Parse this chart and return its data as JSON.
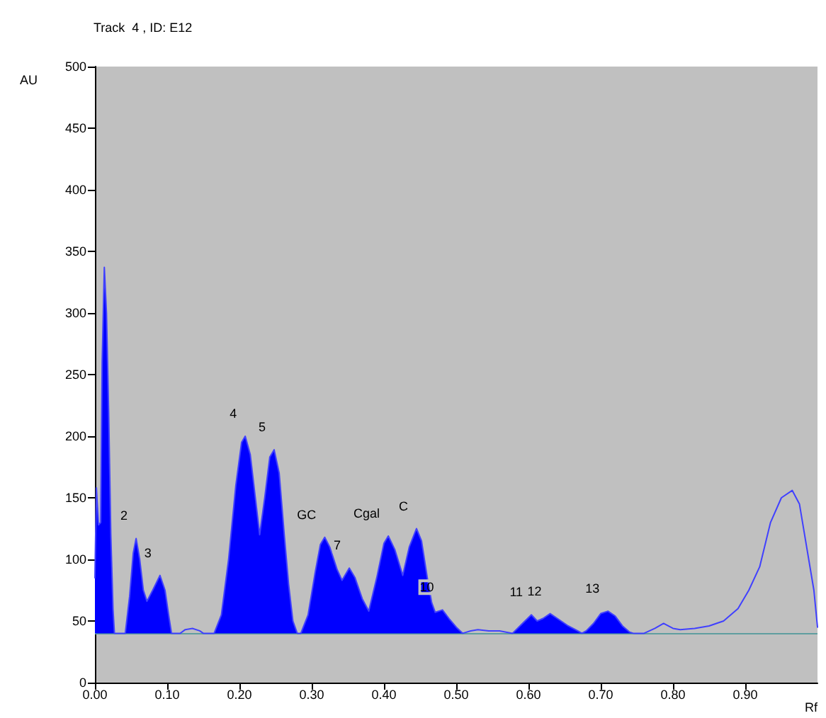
{
  "chart_data": {
    "type": "area",
    "title": "Track  4 , ID: E12",
    "xlabel": "Rf",
    "ylabel": "AU",
    "x": [
      0,
      0.002,
      0.005,
      0.008,
      0.01,
      0.013,
      0.016,
      0.019,
      0.022,
      0.025,
      0.027,
      0.042,
      0.048,
      0.053,
      0.057,
      0.062,
      0.067,
      0.072,
      0.08,
      0.09,
      0.097,
      0.102,
      0.106,
      0.118,
      0.125,
      0.135,
      0.145,
      0.15,
      0.165,
      0.175,
      0.185,
      0.195,
      0.203,
      0.208,
      0.215,
      0.222,
      0.228,
      0.235,
      0.242,
      0.248,
      0.255,
      0.262,
      0.268,
      0.274,
      0.28,
      0.285,
      0.295,
      0.305,
      0.312,
      0.318,
      0.325,
      0.335,
      0.342,
      0.352,
      0.36,
      0.37,
      0.379,
      0.39,
      0.4,
      0.406,
      0.415,
      0.426,
      0.435,
      0.445,
      0.452,
      0.46,
      0.466,
      0.471,
      0.481,
      0.49,
      0.5,
      0.509,
      0.52,
      0.53,
      0.545,
      0.56,
      0.578,
      0.59,
      0.604,
      0.612,
      0.62,
      0.63,
      0.64,
      0.655,
      0.668,
      0.674,
      0.68,
      0.69,
      0.7,
      0.71,
      0.72,
      0.73,
      0.74,
      0.745,
      0.76,
      0.775,
      0.787,
      0.8,
      0.81,
      0.83,
      0.85,
      0.87,
      0.89,
      0.905,
      0.92,
      0.935,
      0.95,
      0.965,
      0.975,
      0.985,
      0.995,
      1.0
    ],
    "series": [
      {
        "color": "#0000ff",
        "values": [
          85,
          158,
          128,
          130,
          260,
          337,
          300,
          220,
          120,
          60,
          40,
          40,
          70,
          105,
          117,
          100,
          75,
          66,
          75,
          87,
          75,
          55,
          40,
          null,
          null,
          null,
          null,
          null,
          40,
          55,
          100,
          160,
          195,
          200,
          185,
          150,
          120,
          150,
          183,
          189,
          170,
          120,
          80,
          50,
          40,
          40,
          55,
          90,
          112,
          118,
          110,
          92,
          83,
          93,
          85,
          68,
          58,
          85,
          113,
          119,
          108,
          87,
          110,
          125,
          115,
          85,
          65,
          57,
          59,
          52,
          45,
          40,
          null,
          null,
          null,
          null,
          40,
          47,
          55,
          50,
          52,
          56,
          52,
          46,
          42,
          40,
          42,
          48,
          56,
          58,
          54,
          46,
          41,
          40,
          null,
          null,
          null,
          null,
          null,
          null,
          null,
          null,
          null,
          null,
          null,
          null,
          null,
          null,
          null,
          null,
          null,
          null
        ]
      },
      {
        "type": "line",
        "color": "#4040ff",
        "values": [
          85,
          158,
          128,
          130,
          260,
          337,
          300,
          220,
          120,
          60,
          40,
          40,
          70,
          105,
          117,
          100,
          75,
          66,
          75,
          87,
          75,
          55,
          40,
          40,
          43,
          44,
          42,
          40,
          40,
          55,
          100,
          160,
          195,
          200,
          185,
          150,
          120,
          150,
          183,
          189,
          170,
          120,
          80,
          50,
          40,
          40,
          55,
          90,
          112,
          118,
          110,
          92,
          83,
          93,
          85,
          68,
          58,
          85,
          113,
          119,
          108,
          87,
          110,
          125,
          115,
          85,
          65,
          57,
          59,
          52,
          45,
          40,
          42,
          43,
          42,
          42,
          40,
          47,
          55,
          50,
          52,
          56,
          52,
          46,
          42,
          40,
          42,
          48,
          56,
          58,
          54,
          46,
          41,
          40,
          40,
          44,
          48,
          44,
          43,
          44,
          46,
          50,
          60,
          75,
          94,
          130,
          150,
          156,
          145,
          110,
          75,
          45
        ]
      }
    ],
    "xlim": [
      0,
      1.0
    ],
    "xticks": [
      {
        "value": 0,
        "label": "0.00"
      },
      {
        "value": 0.1,
        "label": "0.10"
      },
      {
        "value": 0.2,
        "label": "0.20"
      },
      {
        "value": 0.3,
        "label": "0.30"
      },
      {
        "value": 0.4,
        "label": "0.40"
      },
      {
        "value": 0.5,
        "label": "0.50"
      },
      {
        "value": 0.6,
        "label": "0.60"
      },
      {
        "value": 0.7,
        "label": "0.70"
      },
      {
        "value": 0.8,
        "label": "0.80"
      },
      {
        "value": 0.9,
        "label": "0.90"
      }
    ],
    "ylim": [
      0,
      500
    ],
    "yticks": [
      0,
      50,
      100,
      150,
      200,
      250,
      300,
      350,
      400,
      450,
      500
    ],
    "ref_lines": [
      {
        "axis": "y",
        "value": 40,
        "color": "#5f9ea0"
      }
    ],
    "annotations": [
      {
        "text": "2",
        "x": 0.057,
        "y": 117
      },
      {
        "text": "3",
        "x": 0.09,
        "y": 87
      },
      {
        "text": "4",
        "x": 0.208,
        "y": 200
      },
      {
        "text": "5",
        "x": 0.248,
        "y": 189
      },
      {
        "text": "GC",
        "x": 0.318,
        "y": 118
      },
      {
        "text": "7",
        "x": 0.352,
        "y": 93
      },
      {
        "text": "Cgal",
        "x": 0.406,
        "y": 119
      },
      {
        "text": "C",
        "x": 0.445,
        "y": 125
      },
      {
        "text": "10",
        "x": 0.481,
        "y": 59
      },
      {
        "text": "11",
        "x": 0.604,
        "y": 55
      },
      {
        "text": "12",
        "x": 0.63,
        "y": 56
      },
      {
        "text": "13",
        "x": 0.71,
        "y": 58
      }
    ],
    "grid": false,
    "marker": "none",
    "line_style": "solid"
  }
}
